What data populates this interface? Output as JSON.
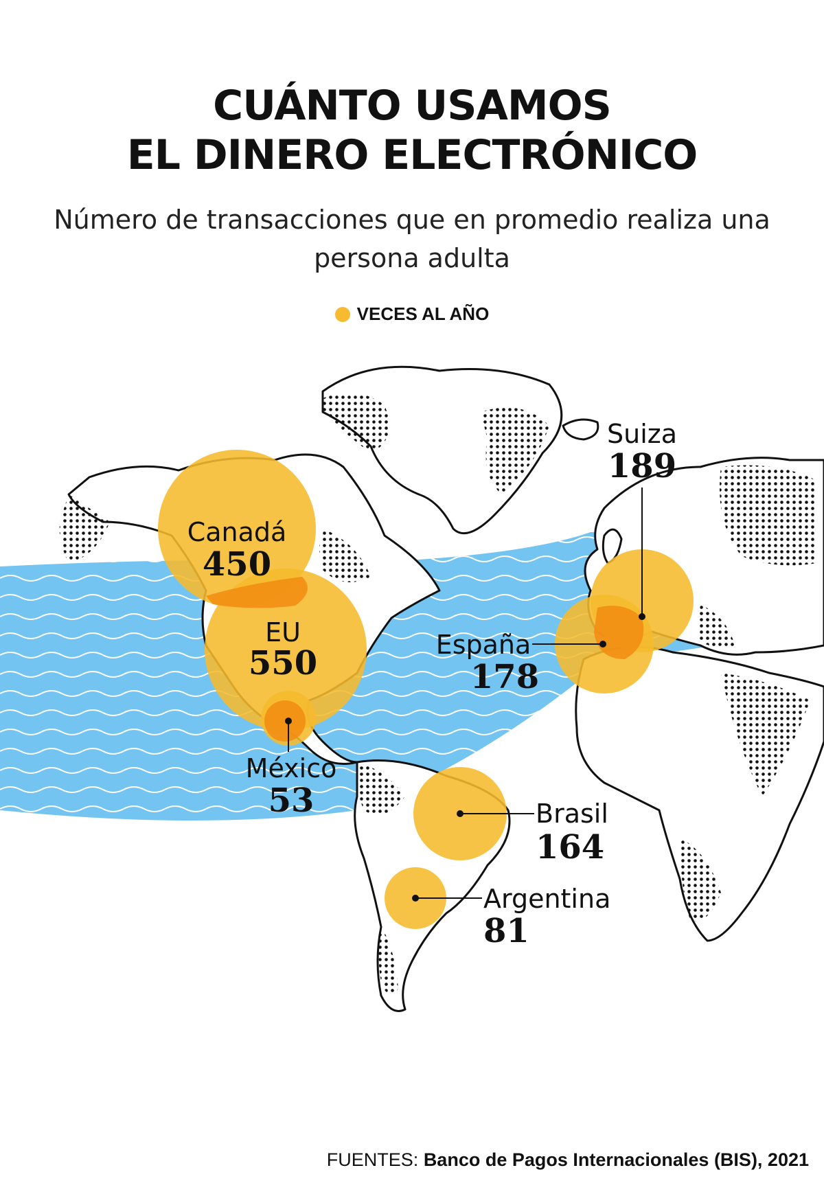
{
  "header": {
    "title_line1": "CUÁNTO USAMOS",
    "title_line2": "EL DINERO ELECTRÓNICO",
    "subtitle": "Número de transacciones que en promedio realiza una persona adulta"
  },
  "legend": {
    "label": "VECES AL AÑO",
    "color": "#f6bb2e"
  },
  "colors": {
    "ocean": "#74c4f2",
    "bubble": "#f6bb2e",
    "overlap": "#f28c12",
    "land_outline": "#111111"
  },
  "countries": [
    {
      "name": "Canadá",
      "value": "450"
    },
    {
      "name": "EU",
      "value": "550"
    },
    {
      "name": "México",
      "value": "53"
    },
    {
      "name": "España",
      "value": "178"
    },
    {
      "name": "Suiza",
      "value": "189"
    },
    {
      "name": "Brasil",
      "value": "164"
    },
    {
      "name": "Argentina",
      "value": "81"
    }
  ],
  "source": {
    "label": "FUENTES:",
    "text": "Banco de Pagos Internacionales (BIS), 2021"
  }
}
